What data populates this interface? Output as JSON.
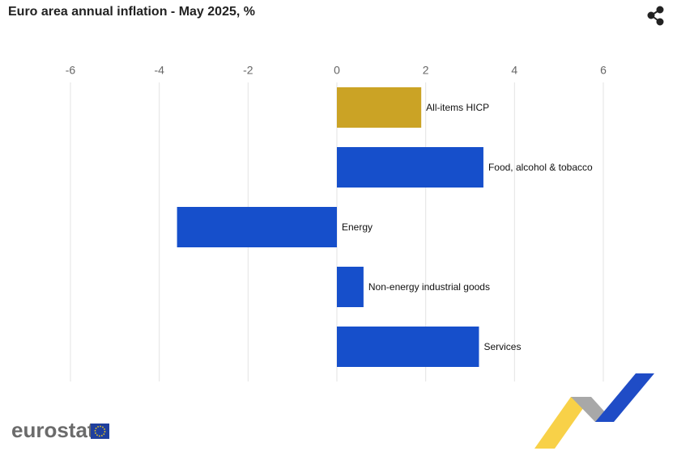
{
  "chart_data": {
    "type": "barh",
    "title": "Euro area annual inflation - May 2025, %",
    "categories": [
      "All-items HICP",
      "Food, alcohol & tobacco",
      "Energy",
      "Non-energy industrial goods",
      "Services"
    ],
    "values": [
      1.9,
      3.3,
      -3.6,
      0.6,
      3.2
    ],
    "colors": [
      "#cba325",
      "#164fcb",
      "#164fcb",
      "#164fcb",
      "#164fcb"
    ],
    "xlim": [
      -6,
      6
    ],
    "xticks": [
      -6,
      -4,
      -2,
      0,
      2,
      4,
      6
    ],
    "grid": true
  },
  "logo": "eurostat"
}
